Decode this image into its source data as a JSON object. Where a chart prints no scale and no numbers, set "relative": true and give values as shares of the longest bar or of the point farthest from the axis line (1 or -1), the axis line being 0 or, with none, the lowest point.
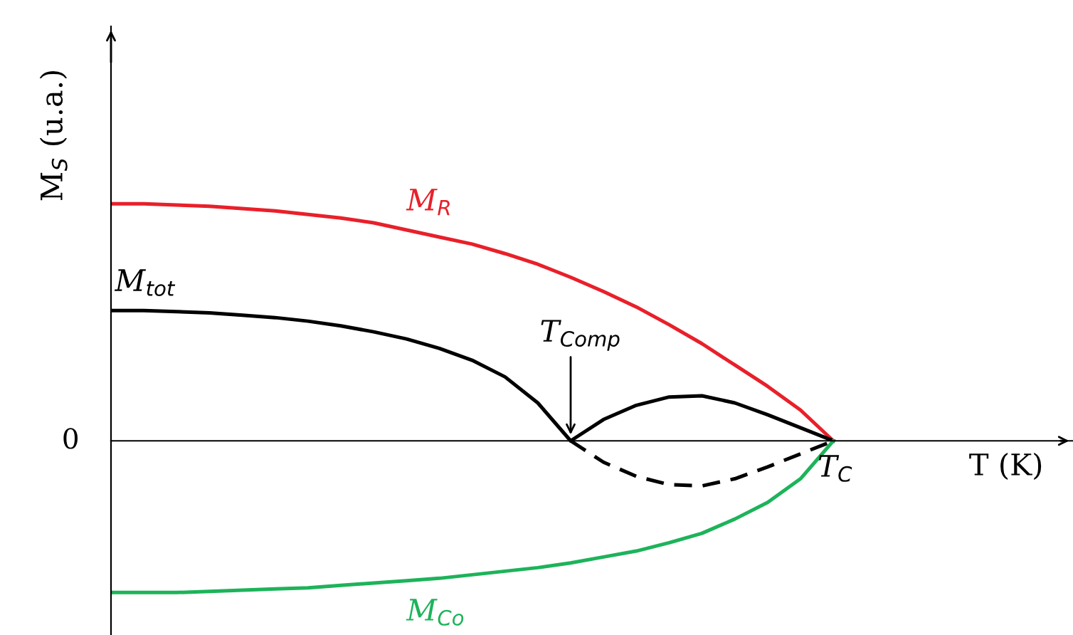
{
  "chart_data": {
    "type": "line",
    "relative": true,
    "xlabel": "T (K)",
    "ylabel": "M$_{S}$ (u.a.)",
    "categories": [
      null,
      null,
      null,
      null,
      null,
      null,
      null,
      null,
      null,
      null,
      null,
      null,
      null,
      null,
      null,
      null,
      null,
      null,
      null,
      null,
      null,
      null,
      null,
      null,
      null,
      null,
      null,
      null,
      null,
      null
    ],
    "legend": false,
    "marker": "none",
    "annotations": [
      "0",
      "T$_{Comp}$",
      "T$_{C}$"
    ],
    "series": [
      {
        "name": "M$_{R}$",
        "color": "#e8202a",
        "values": [
          1,
          1,
          0.995,
          0.99,
          0.98,
          0.97,
          0.955,
          0.94,
          0.92,
          0.89,
          0.86,
          0.83,
          0.79,
          0.745,
          0.69,
          0.63,
          0.565,
          0.49,
          0.41,
          0.32,
          0.23,
          0.13,
          0,
          null,
          null,
          null,
          null,
          null,
          null,
          null
        ]
      },
      {
        "name": "M$_{tot}$",
        "color": "#000000",
        "values": [
          0.55,
          0.55,
          0.545,
          0.54,
          0.53,
          0.52,
          0.505,
          0.485,
          0.46,
          0.43,
          0.39,
          0.34,
          0.27,
          0.16,
          0,
          0.09,
          0.15,
          0.185,
          0.19,
          0.16,
          0.11,
          0.055,
          0,
          null,
          null,
          null,
          null,
          null,
          null,
          null
        ]
      },
      {
        "color": "#000000",
        "line_style": "dashed",
        "values": [
          null,
          null,
          null,
          null,
          null,
          null,
          null,
          null,
          null,
          null,
          null,
          null,
          null,
          null,
          0,
          -0.09,
          -0.15,
          -0.185,
          -0.19,
          -0.16,
          -0.11,
          -0.055,
          0,
          null,
          null,
          null,
          null,
          null,
          null,
          null
        ]
      },
      {
        "name": "M$_{Co}$",
        "color": "#1db35a",
        "values": [
          -0.64,
          -0.64,
          -0.64,
          -0.635,
          -0.63,
          -0.625,
          -0.62,
          -0.61,
          -0.6,
          -0.59,
          -0.58,
          -0.565,
          -0.55,
          -0.535,
          -0.515,
          -0.49,
          -0.465,
          -0.43,
          -0.39,
          -0.33,
          -0.26,
          -0.16,
          0,
          null,
          null,
          null,
          null,
          null,
          null,
          null
        ]
      }
    ]
  }
}
